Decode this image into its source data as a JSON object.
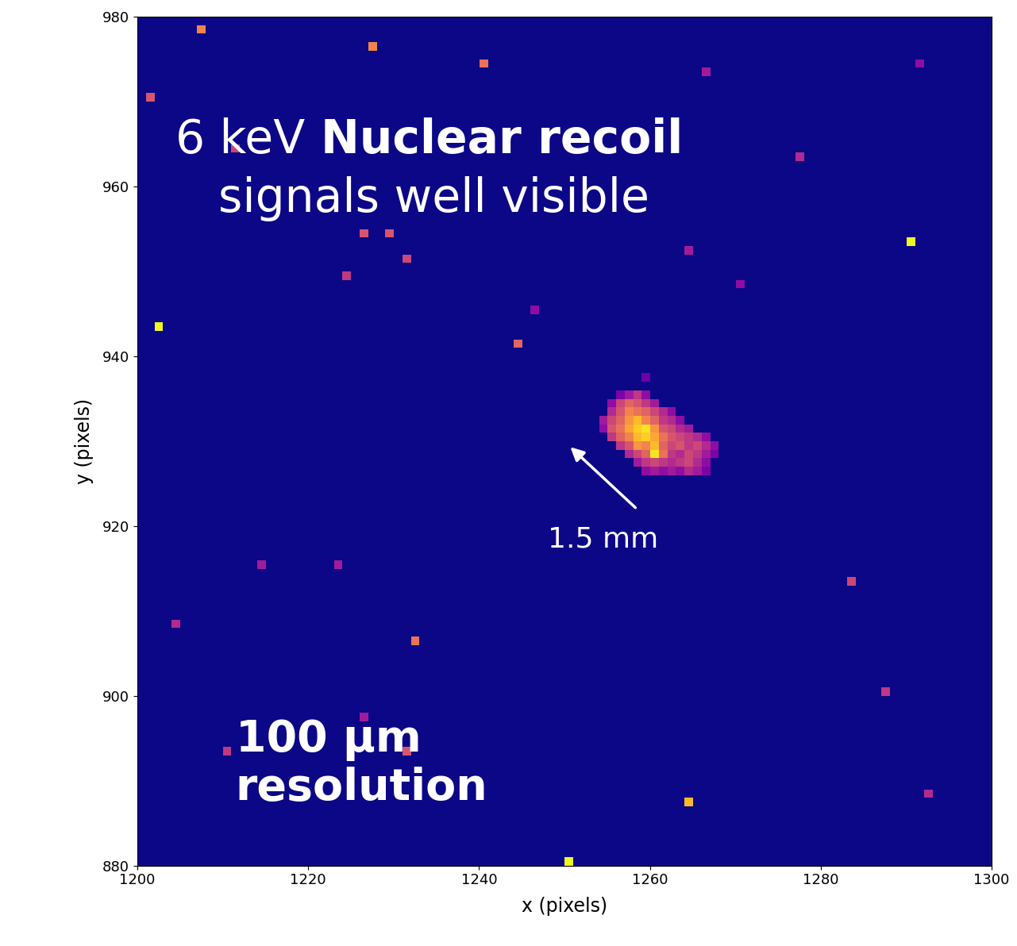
{
  "chart_data": {
    "type": "heatmap",
    "x_label": "x (pixels)",
    "y_label": "y (pixels)",
    "xlim": [
      1200,
      1300
    ],
    "ylim": [
      880,
      980
    ],
    "xticks": [
      1200,
      1220,
      1240,
      1260,
      1280,
      1300
    ],
    "yticks": [
      880,
      900,
      920,
      940,
      960,
      980
    ],
    "zlim": [
      0,
      100
    ],
    "annotations": {
      "title_start": "6 keV",
      "title_bold": "Nuclear recoil",
      "title_second_line": "signals well visible",
      "arrow_label": "1.5 mm",
      "resolution": "100 μm\nresolution"
    },
    "cells": [
      [
        1259,
        937,
        20
      ],
      [
        1256,
        935,
        25
      ],
      [
        1257,
        935,
        35
      ],
      [
        1258,
        935,
        45
      ],
      [
        1259,
        935,
        30
      ],
      [
        1255,
        934,
        30
      ],
      [
        1256,
        934,
        50
      ],
      [
        1257,
        934,
        60
      ],
      [
        1258,
        934,
        55
      ],
      [
        1259,
        934,
        45
      ],
      [
        1260,
        934,
        35
      ],
      [
        1255,
        933,
        40
      ],
      [
        1256,
        933,
        55
      ],
      [
        1257,
        933,
        70
      ],
      [
        1258,
        933,
        65
      ],
      [
        1259,
        933,
        60
      ],
      [
        1260,
        933,
        50
      ],
      [
        1261,
        933,
        40
      ],
      [
        1262,
        933,
        30
      ],
      [
        1254,
        932,
        35
      ],
      [
        1255,
        932,
        50
      ],
      [
        1256,
        932,
        60
      ],
      [
        1257,
        932,
        75
      ],
      [
        1258,
        932,
        85
      ],
      [
        1259,
        932,
        70
      ],
      [
        1260,
        932,
        60
      ],
      [
        1261,
        932,
        45
      ],
      [
        1262,
        932,
        40
      ],
      [
        1263,
        932,
        30
      ],
      [
        1254,
        931,
        30
      ],
      [
        1255,
        931,
        55
      ],
      [
        1256,
        931,
        65
      ],
      [
        1257,
        931,
        80
      ],
      [
        1258,
        931,
        90
      ],
      [
        1259,
        931,
        95
      ],
      [
        1260,
        931,
        75
      ],
      [
        1261,
        931,
        55
      ],
      [
        1262,
        931,
        50
      ],
      [
        1263,
        931,
        40
      ],
      [
        1264,
        931,
        35
      ],
      [
        1255,
        930,
        45
      ],
      [
        1256,
        930,
        60
      ],
      [
        1257,
        930,
        70
      ],
      [
        1258,
        930,
        85
      ],
      [
        1259,
        930,
        90
      ],
      [
        1260,
        930,
        80
      ],
      [
        1261,
        930,
        65
      ],
      [
        1262,
        930,
        55
      ],
      [
        1263,
        930,
        50
      ],
      [
        1264,
        930,
        45
      ],
      [
        1265,
        930,
        40
      ],
      [
        1266,
        930,
        30
      ],
      [
        1256,
        929,
        45
      ],
      [
        1257,
        929,
        55
      ],
      [
        1258,
        929,
        75
      ],
      [
        1259,
        929,
        70
      ],
      [
        1260,
        929,
        85
      ],
      [
        1261,
        929,
        60
      ],
      [
        1262,
        929,
        50
      ],
      [
        1263,
        929,
        55
      ],
      [
        1264,
        929,
        45
      ],
      [
        1265,
        929,
        50
      ],
      [
        1266,
        929,
        40
      ],
      [
        1267,
        929,
        30
      ],
      [
        1257,
        928,
        40
      ],
      [
        1258,
        928,
        50
      ],
      [
        1259,
        928,
        60
      ],
      [
        1260,
        928,
        95
      ],
      [
        1261,
        928,
        65
      ],
      [
        1262,
        928,
        45
      ],
      [
        1263,
        928,
        40
      ],
      [
        1264,
        928,
        50
      ],
      [
        1265,
        928,
        45
      ],
      [
        1266,
        928,
        35
      ],
      [
        1267,
        928,
        25
      ],
      [
        1258,
        927,
        35
      ],
      [
        1259,
        927,
        45
      ],
      [
        1260,
        927,
        50
      ],
      [
        1261,
        927,
        45
      ],
      [
        1262,
        927,
        40
      ],
      [
        1263,
        927,
        45
      ],
      [
        1264,
        927,
        50
      ],
      [
        1265,
        927,
        40
      ],
      [
        1266,
        927,
        30
      ],
      [
        1259,
        926,
        30
      ],
      [
        1260,
        926,
        35
      ],
      [
        1261,
        926,
        30
      ],
      [
        1262,
        926,
        35
      ],
      [
        1263,
        926,
        30
      ],
      [
        1264,
        926,
        40
      ],
      [
        1265,
        926,
        35
      ],
      [
        1266,
        926,
        25
      ],
      [
        1207,
        978,
        70
      ],
      [
        1227,
        976,
        70
      ],
      [
        1240,
        974,
        65
      ],
      [
        1201,
        970,
        55
      ],
      [
        1211,
        964,
        50
      ],
      [
        1226,
        954,
        55
      ],
      [
        1229,
        954,
        55
      ],
      [
        1231,
        951,
        50
      ],
      [
        1224,
        949,
        45
      ],
      [
        1290,
        953,
        100
      ],
      [
        1202,
        943,
        100
      ],
      [
        1244,
        941,
        60
      ],
      [
        1283,
        913,
        50
      ],
      [
        1232,
        906,
        65
      ],
      [
        1210,
        893,
        45
      ],
      [
        1231,
        893,
        55
      ],
      [
        1264,
        887,
        85
      ],
      [
        1250,
        880,
        100
      ],
      [
        1287,
        900,
        45
      ],
      [
        1292,
        888,
        40
      ],
      [
        1204,
        908,
        40
      ],
      [
        1214,
        915,
        35
      ],
      [
        1223,
        915,
        35
      ],
      [
        1264,
        952,
        35
      ],
      [
        1277,
        963,
        40
      ],
      [
        1266,
        973,
        35
      ],
      [
        1291,
        974,
        30
      ],
      [
        1246,
        945,
        30
      ],
      [
        1270,
        948,
        30
      ],
      [
        1226,
        897,
        35
      ]
    ]
  }
}
